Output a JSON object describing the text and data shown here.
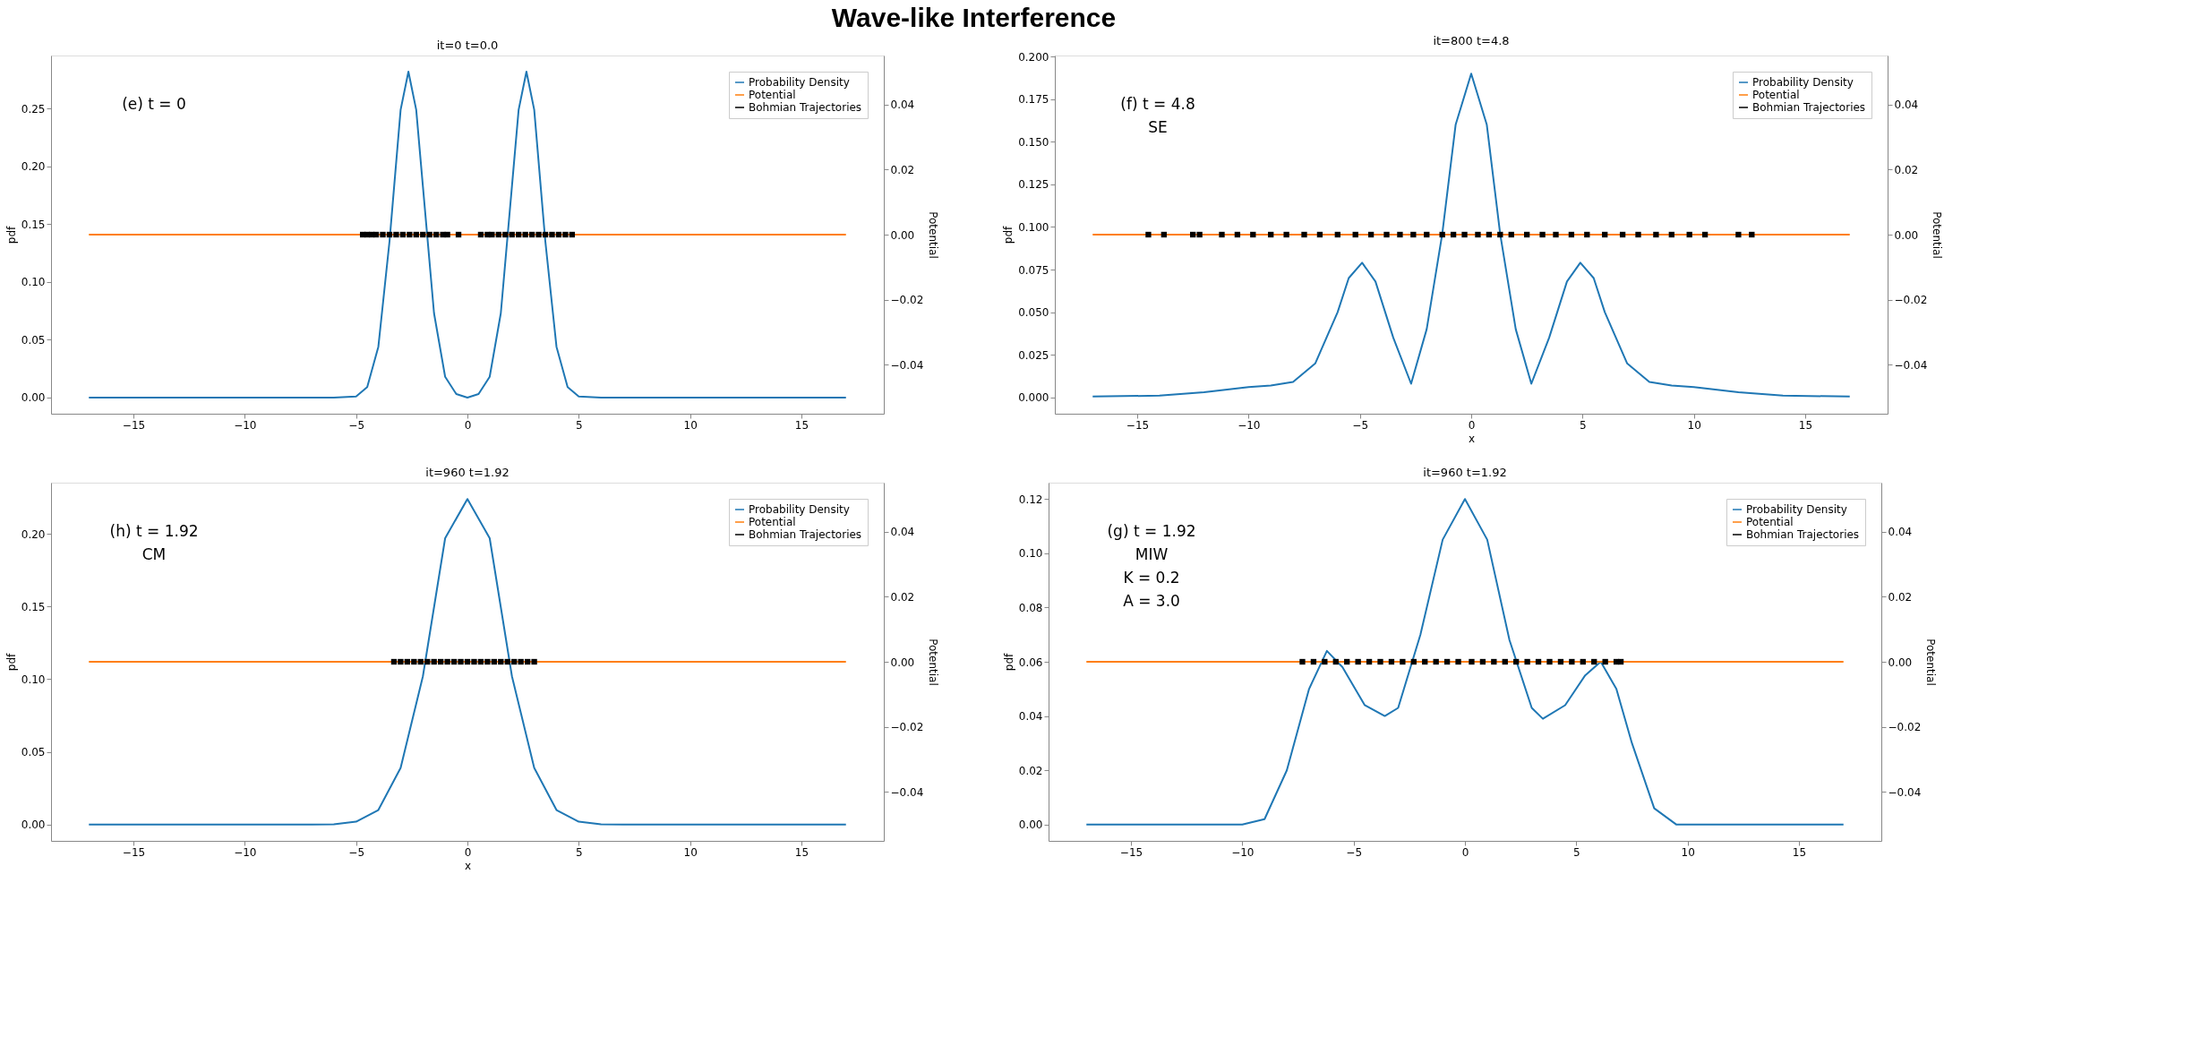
{
  "chart_data": [
    {
      "type": "other",
      "title": "Wave-like Interference"
    },
    {
      "type": "line",
      "title": "it=0 t=0.0",
      "ylabel": "pdf",
      "y2label": "Potential",
      "annotations": [
        "(e) t = 0"
      ],
      "legend": "top right",
      "grid": false,
      "xlim": [
        -18.7,
        18.7
      ],
      "xticks": [
        {
          "value": -15,
          "label": "−15"
        },
        {
          "value": -10,
          "label": "−10"
        },
        {
          "value": -5,
          "label": "−5"
        },
        0,
        5,
        10,
        15
      ],
      "ylim": [
        -0.014,
        0.296
      ],
      "yticks": [
        {
          "value": 0,
          "label": "0.00"
        },
        {
          "value": 0.05,
          "label": "0.05"
        },
        {
          "value": 0.1,
          "label": "0.10"
        },
        {
          "value": 0.15,
          "label": "0.15"
        },
        {
          "value": 0.2,
          "label": "0.20"
        },
        {
          "value": 0.25,
          "label": "0.25"
        }
      ],
      "y2lim": [
        -0.055,
        0.055
      ],
      "y2ticks": [
        {
          "value": -0.04,
          "label": "−0.04"
        },
        {
          "value": -0.02,
          "label": "−0.02"
        },
        {
          "value": 0,
          "label": "0.00"
        },
        {
          "value": 0.02,
          "label": "0.02"
        },
        {
          "value": 0.04,
          "label": "0.04"
        }
      ],
      "series": [
        {
          "name": "Probability Density",
          "color": "#1f77b4",
          "x": [
            -17,
            -6,
            -5,
            -4.5,
            -4,
            -3.5,
            -3,
            -2.65,
            -2.3,
            -2,
            -1.5,
            -1,
            -0.5,
            0,
            0.5,
            1,
            1.5,
            2,
            2.3,
            2.65,
            3,
            3.5,
            4,
            4.5,
            5,
            6,
            17
          ],
          "values": [
            0,
            0,
            0.001,
            0.009,
            0.044,
            0.135,
            0.249,
            0.282,
            0.249,
            0.183,
            0.073,
            0.018,
            0.003,
            0,
            0.003,
            0.018,
            0.073,
            0.183,
            0.249,
            0.282,
            0.249,
            0.135,
            0.044,
            0.009,
            0.001,
            0,
            0
          ]
        },
        {
          "name": "Potential",
          "color": "#ff7f0e",
          "axis": "y2",
          "x": [
            -17,
            17
          ],
          "values": [
            0,
            0
          ]
        },
        {
          "name": "Bohmian Trajectories",
          "color": "#000000",
          "type": "scatter",
          "axis": "y2",
          "x": [
            -4.7,
            -4.5,
            -4.3,
            -4.1,
            -3.8,
            -3.5,
            -3.2,
            -2.9,
            -2.6,
            -2.3,
            -2.0,
            -1.7,
            -1.4,
            -1.1,
            -0.9,
            -0.4,
            0.6,
            0.9,
            1.1,
            1.4,
            1.7,
            2.0,
            2.3,
            2.6,
            2.9,
            3.2,
            3.5,
            3.8,
            4.1,
            4.4,
            4.7
          ],
          "values": [
            0,
            0,
            0,
            0,
            0,
            0,
            0,
            0,
            0,
            0,
            0,
            0,
            0,
            0,
            0,
            0,
            0,
            0,
            0,
            0,
            0,
            0,
            0,
            0,
            0,
            0,
            0,
            0,
            0,
            0,
            0
          ]
        }
      ]
    },
    {
      "type": "line",
      "title": "it=800 t=4.8",
      "xlabel": "x",
      "ylabel": "pdf",
      "y2label": "Potential",
      "annotations": [
        "(f) t = 4.8",
        "SE"
      ],
      "legend": "top right",
      "grid": false,
      "xlim": [
        -18.7,
        18.7
      ],
      "xticks": [
        {
          "value": -15,
          "label": "−15"
        },
        {
          "value": -10,
          "label": "−10"
        },
        {
          "value": -5,
          "label": "−5"
        },
        0,
        5,
        10,
        15
      ],
      "ylim": [
        -0.0096,
        0.2006
      ],
      "yticks": [
        {
          "value": 0,
          "label": "0.000"
        },
        {
          "value": 0.025,
          "label": "0.025"
        },
        {
          "value": 0.05,
          "label": "0.050"
        },
        {
          "value": 0.075,
          "label": "0.075"
        },
        {
          "value": 0.1,
          "label": "0.100"
        },
        {
          "value": 0.125,
          "label": "0.125"
        },
        {
          "value": 0.15,
          "label": "0.150"
        },
        {
          "value": 0.175,
          "label": "0.175"
        },
        {
          "value": 0.2,
          "label": "0.200"
        }
      ],
      "y2lim": [
        -0.055,
        0.055
      ],
      "y2ticks": [
        {
          "value": -0.04,
          "label": "−0.04"
        },
        {
          "value": -0.02,
          "label": "−0.02"
        },
        {
          "value": 0,
          "label": "0.00"
        },
        {
          "value": 0.02,
          "label": "0.02"
        },
        {
          "value": 0.04,
          "label": "0.04"
        }
      ],
      "series": [
        {
          "name": "Probability Density",
          "color": "#1f77b4",
          "x": [
            -17,
            -14,
            -12,
            -10,
            -9,
            -8,
            -7,
            -6,
            -5.5,
            -4.9,
            -4.3,
            -3.5,
            -2.7,
            -2,
            -1.3,
            -0.7,
            0,
            0.7,
            1.3,
            2,
            2.7,
            3.5,
            4.3,
            4.9,
            5.5,
            6,
            7,
            8,
            9,
            10,
            12,
            14,
            17
          ],
          "values": [
            0.0005,
            0.001,
            0.003,
            0.006,
            0.007,
            0.009,
            0.02,
            0.05,
            0.07,
            0.079,
            0.068,
            0.035,
            0.008,
            0.04,
            0.096,
            0.16,
            0.19,
            0.16,
            0.096,
            0.04,
            0.008,
            0.035,
            0.068,
            0.079,
            0.07,
            0.05,
            0.02,
            0.009,
            0.007,
            0.006,
            0.003,
            0.001,
            0.0005
          ]
        },
        {
          "name": "Potential",
          "color": "#ff7f0e",
          "axis": "y2",
          "x": [
            -17,
            17
          ],
          "values": [
            0,
            0
          ]
        },
        {
          "name": "Bohmian Trajectories",
          "color": "#000000",
          "type": "scatter",
          "axis": "y2",
          "x": [
            -14.5,
            -13.8,
            -12.5,
            -12.2,
            -11.2,
            -10.5,
            -9.8,
            -9,
            -8.3,
            -7.5,
            -6.8,
            -6,
            -5.2,
            -4.5,
            -3.8,
            -3.2,
            -2.6,
            -2,
            -1.3,
            -0.8,
            -0.3,
            0.3,
            0.8,
            1.3,
            1.8,
            2.5,
            3.2,
            3.8,
            4.5,
            5.2,
            6,
            6.8,
            7.5,
            8.3,
            9,
            9.8,
            10.5,
            12,
            12.6
          ],
          "values": [
            0,
            0,
            0,
            0,
            0,
            0,
            0,
            0,
            0,
            0,
            0,
            0,
            0,
            0,
            0,
            0,
            0,
            0,
            0,
            0,
            0,
            0,
            0,
            0,
            0,
            0,
            0,
            0,
            0,
            0,
            0,
            0,
            0,
            0,
            0,
            0,
            0,
            0,
            0
          ]
        }
      ]
    },
    {
      "type": "line",
      "title": "it=960 t=1.92",
      "xlabel": "x",
      "ylabel": "pdf",
      "y2label": "Potential",
      "annotations": [
        "(h) t = 1.92",
        "CM"
      ],
      "legend": "top right",
      "grid": false,
      "xlim": [
        -18.7,
        18.7
      ],
      "xticks": [
        {
          "value": -15,
          "label": "−15"
        },
        {
          "value": -10,
          "label": "−10"
        },
        {
          "value": -5,
          "label": "−5"
        },
        0,
        5,
        10,
        15
      ],
      "ylim": [
        -0.0112,
        0.2352
      ],
      "yticks": [
        {
          "value": 0,
          "label": "0.00"
        },
        {
          "value": 0.05,
          "label": "0.05"
        },
        {
          "value": 0.1,
          "label": "0.10"
        },
        {
          "value": 0.15,
          "label": "0.15"
        },
        {
          "value": 0.2,
          "label": "0.20"
        }
      ],
      "y2lim": [
        -0.055,
        0.055
      ],
      "y2ticks": [
        {
          "value": -0.04,
          "label": "−0.04"
        },
        {
          "value": -0.02,
          "label": "−0.02"
        },
        {
          "value": 0,
          "label": "0.00"
        },
        {
          "value": 0.02,
          "label": "0.02"
        },
        {
          "value": 0.04,
          "label": "0.04"
        }
      ],
      "series": [
        {
          "name": "Probability Density",
          "color": "#1f77b4",
          "x": [
            -17,
            -7,
            -6,
            -5,
            -4,
            -3,
            -2,
            -1,
            0,
            1,
            2,
            3,
            4,
            5,
            6,
            7,
            17
          ],
          "values": [
            0,
            0,
            0.0002,
            0.002,
            0.01,
            0.039,
            0.102,
            0.197,
            0.224,
            0.197,
            0.102,
            0.039,
            0.01,
            0.002,
            0.0002,
            0,
            0
          ]
        },
        {
          "name": "Potential",
          "color": "#ff7f0e",
          "axis": "y2",
          "x": [
            -17,
            17
          ],
          "values": [
            0,
            0
          ]
        },
        {
          "name": "Bohmian Trajectories",
          "color": "#000000",
          "type": "scatter",
          "axis": "y2",
          "x": [
            -3.3,
            -3.0,
            -2.7,
            -2.4,
            -2.1,
            -1.8,
            -1.5,
            -1.2,
            -0.9,
            -0.6,
            -0.3,
            0,
            0.3,
            0.6,
            0.9,
            1.2,
            1.5,
            1.8,
            2.1,
            2.4,
            2.7,
            3.0
          ],
          "values": [
            0,
            0,
            0,
            0,
            0,
            0,
            0,
            0,
            0,
            0,
            0,
            0,
            0,
            0,
            0,
            0,
            0,
            0,
            0,
            0,
            0,
            0
          ]
        }
      ]
    },
    {
      "type": "line",
      "title": "it=960 t=1.92",
      "ylabel": "pdf",
      "y2label": "Potential",
      "annotations": [
        "(g) t = 1.92",
        "MIW",
        "K = 0.2",
        "A = 3.0"
      ],
      "legend": "top right",
      "grid": false,
      "xlim": [
        -18.7,
        18.7
      ],
      "xticks": [
        {
          "value": -15,
          "label": "−15"
        },
        {
          "value": -10,
          "label": "−10"
        },
        {
          "value": -5,
          "label": "−5"
        },
        0,
        5,
        10,
        15
      ],
      "ylim": [
        -0.006,
        0.126
      ],
      "yticks": [
        {
          "value": 0,
          "label": "0.00"
        },
        {
          "value": 0.02,
          "label": "0.02"
        },
        {
          "value": 0.04,
          "label": "0.04"
        },
        {
          "value": 0.06,
          "label": "0.06"
        },
        {
          "value": 0.08,
          "label": "0.08"
        },
        {
          "value": 0.1,
          "label": "0.10"
        },
        {
          "value": 0.12,
          "label": "0.12"
        }
      ],
      "y2lim": [
        -0.055,
        0.055
      ],
      "y2ticks": [
        {
          "value": -0.04,
          "label": "−0.04"
        },
        {
          "value": -0.02,
          "label": "−0.02"
        },
        {
          "value": 0,
          "label": "0.00"
        },
        {
          "value": 0.02,
          "label": "0.02"
        },
        {
          "value": 0.04,
          "label": "0.04"
        }
      ],
      "series": [
        {
          "name": "Probability Density",
          "color": "#1f77b4",
          "x": [
            -17,
            -10,
            -9,
            -8,
            -7,
            -6.2,
            -5.5,
            -4.5,
            -3.6,
            -3,
            -2,
            -1,
            0,
            1,
            2,
            3,
            3.5,
            4.5,
            5.4,
            6.1,
            6.8,
            7.5,
            8.5,
            9.5,
            17
          ],
          "values": [
            0,
            0,
            0.002,
            0.02,
            0.05,
            0.064,
            0.058,
            0.044,
            0.04,
            0.043,
            0.07,
            0.105,
            0.12,
            0.105,
            0.068,
            0.043,
            0.039,
            0.044,
            0.055,
            0.06,
            0.05,
            0.03,
            0.006,
            0,
            0
          ]
        },
        {
          "name": "Potential",
          "color": "#ff7f0e",
          "axis": "y2",
          "x": [
            -17,
            17
          ],
          "values": [
            0,
            0
          ]
        },
        {
          "name": "Bohmian Trajectories",
          "color": "#000000",
          "type": "scatter",
          "axis": "y2",
          "x": [
            -7.3,
            -6.8,
            -6.3,
            -5.8,
            -5.3,
            -4.8,
            -4.3,
            -3.8,
            -3.3,
            -2.8,
            -2.3,
            -1.8,
            -1.3,
            -0.8,
            -0.3,
            0.3,
            0.8,
            1.3,
            1.8,
            2.3,
            2.8,
            3.3,
            3.8,
            4.3,
            4.8,
            5.3,
            5.8,
            6.3,
            6.8,
            7.0
          ],
          "values": [
            0,
            0,
            0,
            0,
            0,
            0,
            0,
            0,
            0,
            0,
            0,
            0,
            0,
            0,
            0,
            0,
            0,
            0,
            0,
            0,
            0,
            0,
            0,
            0,
            0,
            0,
            0,
            0,
            0,
            0
          ]
        }
      ]
    }
  ]
}
